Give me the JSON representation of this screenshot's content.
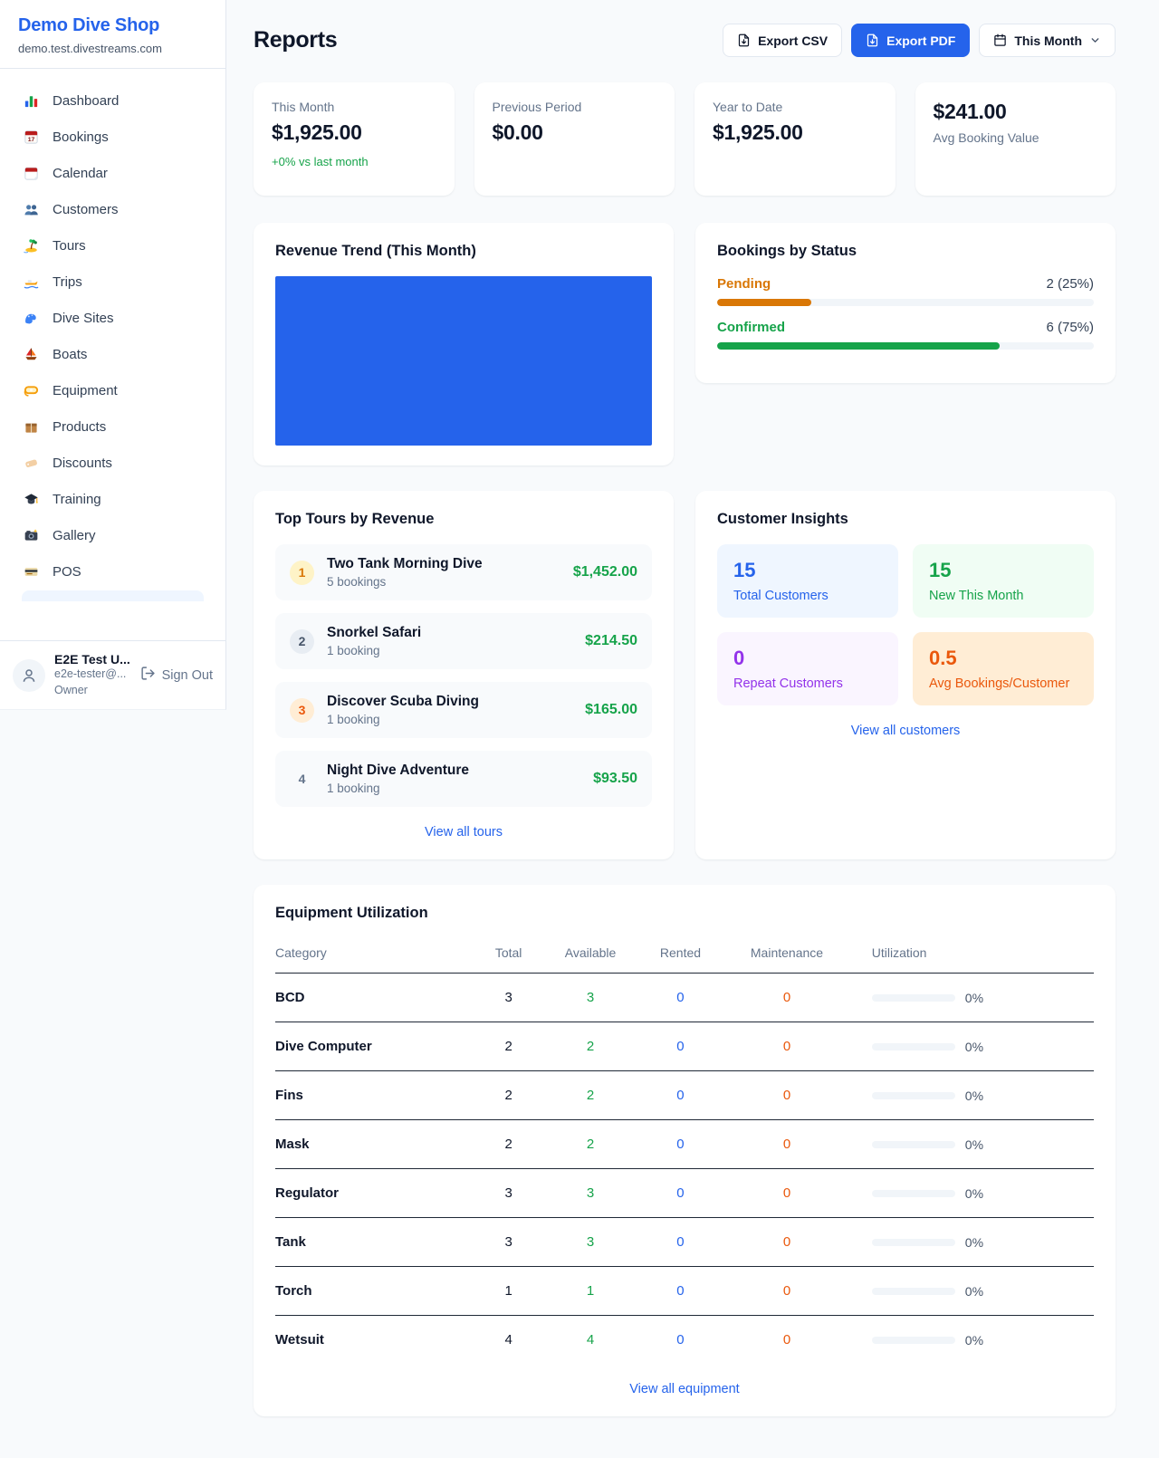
{
  "sidebar": {
    "brand": {
      "name": "Demo Dive Shop",
      "domain": "demo.test.divestreams.com"
    },
    "items": [
      {
        "label": "Dashboard",
        "icon": "bar-chart"
      },
      {
        "label": "Bookings",
        "icon": "calendar-date"
      },
      {
        "label": "Calendar",
        "icon": "calendar-pad"
      },
      {
        "label": "Customers",
        "icon": "users"
      },
      {
        "label": "Tours",
        "icon": "island"
      },
      {
        "label": "Trips",
        "icon": "speedboat"
      },
      {
        "label": "Dive Sites",
        "icon": "wave"
      },
      {
        "label": "Boats",
        "icon": "sailboat"
      },
      {
        "label": "Equipment",
        "icon": "dive-mask"
      },
      {
        "label": "Products",
        "icon": "package"
      },
      {
        "label": "Discounts",
        "icon": "tag"
      },
      {
        "label": "Training",
        "icon": "grad-cap"
      },
      {
        "label": "Gallery",
        "icon": "camera"
      },
      {
        "label": "POS",
        "icon": "credit-card"
      }
    ],
    "user": {
      "name": "E2E Test U...",
      "email": "e2e-tester@...",
      "role": "Owner",
      "signout_label": "Sign Out"
    }
  },
  "header": {
    "title": "Reports",
    "export_csv_label": "Export CSV",
    "export_pdf_label": "Export PDF",
    "period_label": "This Month"
  },
  "stats": [
    {
      "label": "This Month",
      "value": "$1,925.00",
      "delta": "+0% vs last month",
      "value_first": false
    },
    {
      "label": "Previous Period",
      "value": "$0.00",
      "value_first": false
    },
    {
      "label": "Year to Date",
      "value": "$1,925.00",
      "value_first": false
    },
    {
      "label": "Avg Booking Value",
      "value": "$241.00",
      "value_first": true
    }
  ],
  "revenue_trend": {
    "title": "Revenue Trend (This Month)",
    "bar_color": "#2563eb"
  },
  "bookings_by_status": {
    "title": "Bookings by Status",
    "rows": [
      {
        "label": "Pending",
        "value_text": "2 (25%)",
        "pct": 25,
        "color": "#d97706"
      },
      {
        "label": "Confirmed",
        "value_text": "6 (75%)",
        "pct": 75,
        "color": "#16a34a"
      }
    ]
  },
  "top_tours": {
    "title": "Top Tours by Revenue",
    "rows": [
      {
        "rank": "1",
        "name": "Two Tank Morning Dive",
        "bookings": "5 bookings",
        "revenue": "$1,452.00",
        "rank_bg": "#fef3c7",
        "rank_color": "#d97706"
      },
      {
        "rank": "2",
        "name": "Snorkel Safari",
        "bookings": "1 booking",
        "revenue": "$214.50",
        "rank_bg": "#e8edf3",
        "rank_color": "#475569"
      },
      {
        "rank": "3",
        "name": "Discover Scuba Diving",
        "bookings": "1 booking",
        "revenue": "$165.00",
        "rank_bg": "#ffedd5",
        "rank_color": "#ea580c"
      },
      {
        "rank": "4",
        "name": "Night Dive Adventure",
        "bookings": "1 booking",
        "revenue": "$93.50",
        "rank_bg": "transparent",
        "rank_color": "#64748b"
      }
    ],
    "link": "View all tours"
  },
  "customer_insights": {
    "title": "Customer Insights",
    "tiles": [
      {
        "value": "15",
        "label": "Total Customers",
        "bg": "#eff6ff",
        "color": "#2563eb"
      },
      {
        "value": "15",
        "label": "New This Month",
        "bg": "#f0fdf4",
        "color": "#16a34a"
      },
      {
        "value": "0",
        "label": "Repeat Customers",
        "bg": "#faf5ff",
        "color": "#9333ea"
      },
      {
        "value": "0.5",
        "label": "Avg Bookings/Customer",
        "bg": "#ffedd5",
        "color": "#ea580c"
      }
    ],
    "link": "View all customers"
  },
  "equipment": {
    "title": "Equipment Utilization",
    "columns": [
      "Category",
      "Total",
      "Available",
      "Rented",
      "Maintenance",
      "Utilization"
    ],
    "rows": [
      {
        "category": "BCD",
        "total": "3",
        "available": "3",
        "rented": "0",
        "maintenance": "0",
        "utilization": "0%"
      },
      {
        "category": "Dive Computer",
        "total": "2",
        "available": "2",
        "rented": "0",
        "maintenance": "0",
        "utilization": "0%"
      },
      {
        "category": "Fins",
        "total": "2",
        "available": "2",
        "rented": "0",
        "maintenance": "0",
        "utilization": "0%"
      },
      {
        "category": "Mask",
        "total": "2",
        "available": "2",
        "rented": "0",
        "maintenance": "0",
        "utilization": "0%"
      },
      {
        "category": "Regulator",
        "total": "3",
        "available": "3",
        "rented": "0",
        "maintenance": "0",
        "utilization": "0%"
      },
      {
        "category": "Tank",
        "total": "3",
        "available": "3",
        "rented": "0",
        "maintenance": "0",
        "utilization": "0%"
      },
      {
        "category": "Torch",
        "total": "1",
        "available": "1",
        "rented": "0",
        "maintenance": "0",
        "utilization": "0%"
      },
      {
        "category": "Wetsuit",
        "total": "4",
        "available": "4",
        "rented": "0",
        "maintenance": "0",
        "utilization": "0%"
      }
    ],
    "link": "View all equipment"
  }
}
